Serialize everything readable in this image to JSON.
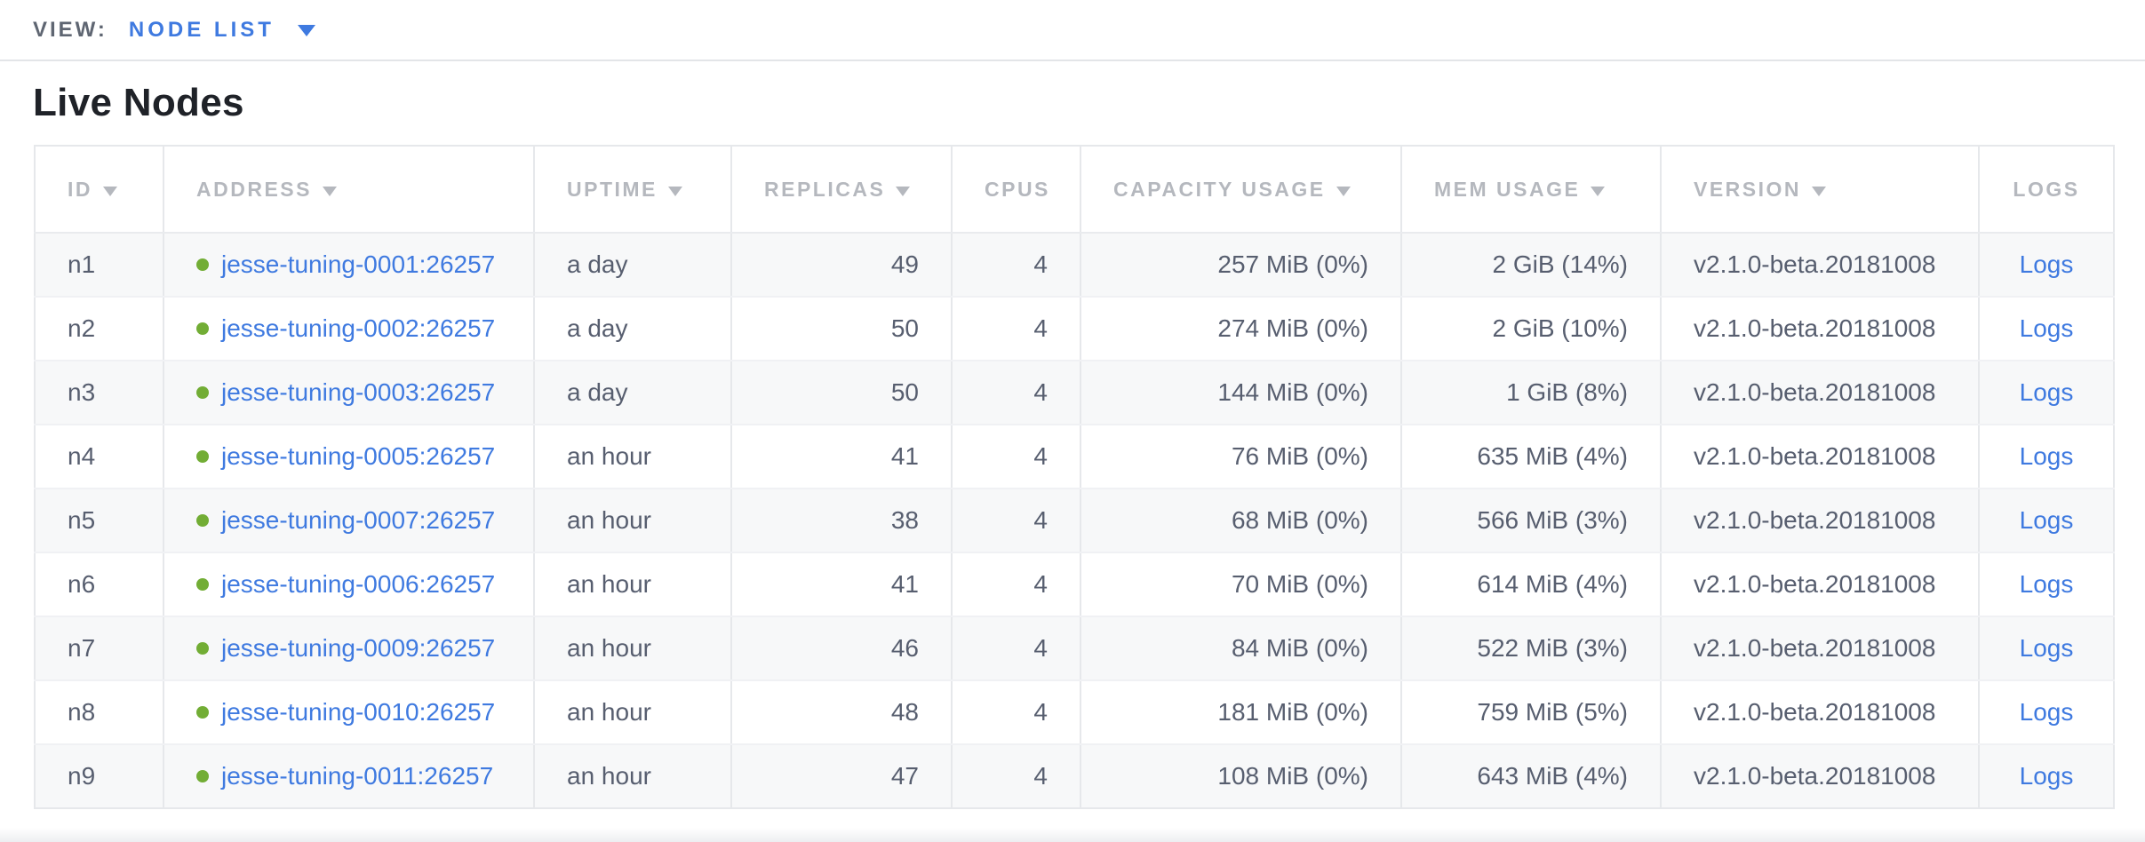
{
  "toolbar": {
    "view_label": "VIEW:",
    "view_value": "NODE LIST"
  },
  "section": {
    "title": "Live Nodes"
  },
  "table": {
    "columns": [
      {
        "id": "id",
        "label": "ID",
        "sortable": true,
        "align": "left"
      },
      {
        "id": "address",
        "label": "ADDRESS",
        "sortable": true,
        "align": "left"
      },
      {
        "id": "uptime",
        "label": "UPTIME",
        "sortable": true,
        "align": "left"
      },
      {
        "id": "replicas",
        "label": "REPLICAS",
        "sortable": true,
        "align": "right"
      },
      {
        "id": "cpus",
        "label": "CPUS",
        "sortable": false,
        "align": "right"
      },
      {
        "id": "capacity",
        "label": "CAPACITY USAGE",
        "sortable": true,
        "align": "right"
      },
      {
        "id": "mem",
        "label": "MEM USAGE",
        "sortable": true,
        "align": "right"
      },
      {
        "id": "version",
        "label": "VERSION",
        "sortable": true,
        "align": "left"
      },
      {
        "id": "logs",
        "label": "LOGS",
        "sortable": false,
        "align": "center"
      }
    ],
    "rows": [
      {
        "id": "n1",
        "status": "live",
        "address": "jesse-tuning-0001:26257",
        "uptime": "a day",
        "replicas": "49",
        "cpus": "4",
        "capacity": "257 MiB (0%)",
        "mem": "2 GiB (14%)",
        "version": "v2.1.0-beta.20181008",
        "logs": "Logs"
      },
      {
        "id": "n2",
        "status": "live",
        "address": "jesse-tuning-0002:26257",
        "uptime": "a day",
        "replicas": "50",
        "cpus": "4",
        "capacity": "274 MiB (0%)",
        "mem": "2 GiB (10%)",
        "version": "v2.1.0-beta.20181008",
        "logs": "Logs"
      },
      {
        "id": "n3",
        "status": "live",
        "address": "jesse-tuning-0003:26257",
        "uptime": "a day",
        "replicas": "50",
        "cpus": "4",
        "capacity": "144 MiB (0%)",
        "mem": "1 GiB (8%)",
        "version": "v2.1.0-beta.20181008",
        "logs": "Logs"
      },
      {
        "id": "n4",
        "status": "live",
        "address": "jesse-tuning-0005:26257",
        "uptime": "an hour",
        "replicas": "41",
        "cpus": "4",
        "capacity": "76 MiB (0%)",
        "mem": "635 MiB (4%)",
        "version": "v2.1.0-beta.20181008",
        "logs": "Logs"
      },
      {
        "id": "n5",
        "status": "live",
        "address": "jesse-tuning-0007:26257",
        "uptime": "an hour",
        "replicas": "38",
        "cpus": "4",
        "capacity": "68 MiB (0%)",
        "mem": "566 MiB (3%)",
        "version": "v2.1.0-beta.20181008",
        "logs": "Logs"
      },
      {
        "id": "n6",
        "status": "live",
        "address": "jesse-tuning-0006:26257",
        "uptime": "an hour",
        "replicas": "41",
        "cpus": "4",
        "capacity": "70 MiB (0%)",
        "mem": "614 MiB (4%)",
        "version": "v2.1.0-beta.20181008",
        "logs": "Logs"
      },
      {
        "id": "n7",
        "status": "live",
        "address": "jesse-tuning-0009:26257",
        "uptime": "an hour",
        "replicas": "46",
        "cpus": "4",
        "capacity": "84 MiB (0%)",
        "mem": "522 MiB (3%)",
        "version": "v2.1.0-beta.20181008",
        "logs": "Logs"
      },
      {
        "id": "n8",
        "status": "live",
        "address": "jesse-tuning-0010:26257",
        "uptime": "an hour",
        "replicas": "48",
        "cpus": "4",
        "capacity": "181 MiB (0%)",
        "mem": "759 MiB (5%)",
        "version": "v2.1.0-beta.20181008",
        "logs": "Logs"
      },
      {
        "id": "n9",
        "status": "live",
        "address": "jesse-tuning-0011:26257",
        "uptime": "an hour",
        "replicas": "47",
        "cpus": "4",
        "capacity": "108 MiB (0%)",
        "mem": "643 MiB (4%)",
        "version": "v2.1.0-beta.20181008",
        "logs": "Logs"
      }
    ]
  },
  "colors": {
    "link_blue": "#3f7ae0",
    "live_green": "#72ad35",
    "header_gray": "#b5b8be",
    "cell_text": "#575e6f"
  }
}
